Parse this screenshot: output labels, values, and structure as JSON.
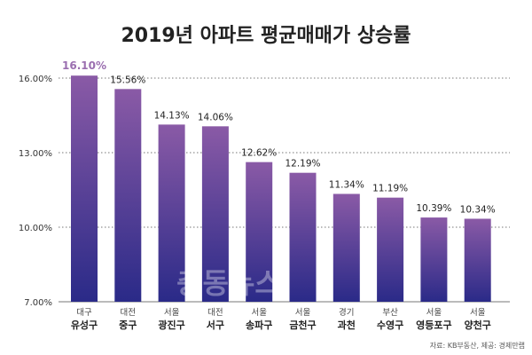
{
  "chart_data": {
    "type": "bar",
    "title": "2019년 아파트 평균매매가 상승률",
    "categories": [
      {
        "region": "대구",
        "district": "유성구"
      },
      {
        "region": "대전",
        "district": "중구"
      },
      {
        "region": "서울",
        "district": "광진구"
      },
      {
        "region": "대전",
        "district": "서구"
      },
      {
        "region": "서울",
        "district": "송파구"
      },
      {
        "region": "서울",
        "district": "금천구"
      },
      {
        "region": "경기",
        "district": "과천"
      },
      {
        "region": "부산",
        "district": "수영구"
      },
      {
        "region": "서울",
        "district": "영등포구"
      },
      {
        "region": "서울",
        "district": "양천구"
      }
    ],
    "values": [
      16.1,
      15.56,
      14.13,
      14.06,
      12.62,
      12.19,
      11.34,
      11.19,
      10.39,
      10.34
    ],
    "value_labels": [
      "16.10%",
      "15.56%",
      "14.13%",
      "14.06%",
      "12.62%",
      "12.19%",
      "11.34%",
      "11.19%",
      "10.39%",
      "10.34%"
    ],
    "yticks": [
      7.0,
      10.0,
      13.0,
      16.0
    ],
    "ytick_labels": [
      "7.00%",
      "10.00%",
      "13.00%",
      "16.00%"
    ],
    "ylim": [
      7.0,
      17.9
    ],
    "grid": true,
    "highlight_index": 0,
    "highlight_color": "#9b6fb0",
    "bar_color_top": "#8a5aa6",
    "bar_color_bottom": "#2a2a88"
  },
  "watermark": "충동뉴스",
  "source": "자료: KB부동산, 제공: 경제만랩"
}
